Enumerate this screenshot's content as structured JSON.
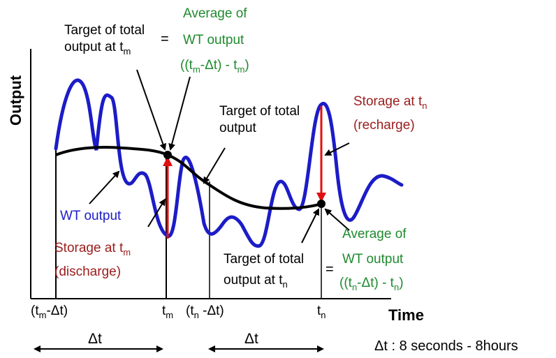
{
  "axes": {
    "y_label": "Output",
    "x_label": "Time"
  },
  "top_left": {
    "target_line1": "Target of total",
    "target_line2": "output at t",
    "target_sub": "m",
    "equals": "=",
    "avg_line1": "Average of",
    "avg_line2": "WT output",
    "avg_line3_a": "((t",
    "avg_line3_sub1": "m",
    "avg_line3_b": "-Δt) - t",
    "avg_line3_sub2": "m",
    "avg_line3_c": ")"
  },
  "middle": {
    "target_line1": "Target of total",
    "target_line2": "output"
  },
  "storage_n": {
    "line1_a": "Storage at t",
    "line1_sub": "n",
    "line2": "(recharge)"
  },
  "wt_output": "WT output",
  "storage_m": {
    "line1_a": "Storage  at  t",
    "line1_sub": "m",
    "line2": "(discharge)"
  },
  "bottom_right": {
    "target_line1": "Target of total",
    "target_line2": "output at t",
    "target_sub": "n",
    "equals": "=",
    "avg_line1": "Average of",
    "avg_line2": "WT output",
    "avg_line3_a": "((t",
    "avg_line3_sub1": "n",
    "avg_line3_b": "-Δt) - t",
    "avg_line3_sub2": "n",
    "avg_line3_c": ")"
  },
  "ticks": {
    "t1_a": "(t",
    "t1_sub": "m",
    "t1_b": "-Δt)",
    "t2_a": "t",
    "t2_sub": "m",
    "t3_a": "(t",
    "t3_sub": "n",
    "t3_b": " -Δt)",
    "t4_a": "t",
    "t4_sub": "n"
  },
  "delta_1": "Δt",
  "delta_2": "Δt",
  "delta_note": "Δt : 8 seconds - 8hours",
  "colors": {
    "wt_curve": "#1c1cc8",
    "target_curve": "#000000",
    "storage_arrow": "#e01010",
    "green_text": "#1f8a2e",
    "red_text": "#9b1c1c"
  },
  "icons": [
    "arrow-icon",
    "dot-icon"
  ]
}
